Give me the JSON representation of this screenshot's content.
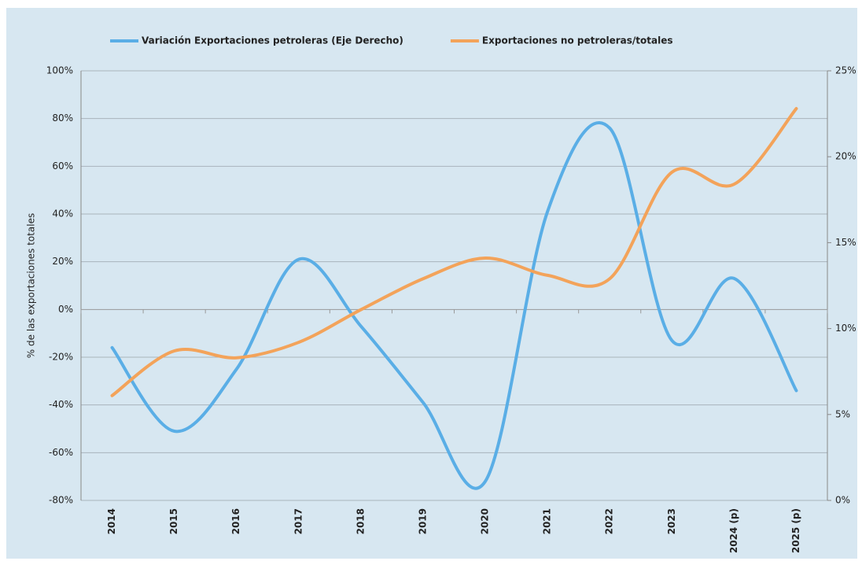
{
  "chart_data": {
    "type": "line",
    "y_label": "% de las exportaciones totales",
    "categories": [
      "2014",
      "2015",
      "2016",
      "2017",
      "2018",
      "2019",
      "2020",
      "2021",
      "2022",
      "2023",
      "2024 (p)",
      "2025 (p)"
    ],
    "series": [
      {
        "name": "Variación Exportaciones petroleras (Eje Derecho)",
        "color": "#5aaee6",
        "values": [
          -16,
          -51,
          -25,
          21,
          -7,
          -39,
          -72,
          41,
          76,
          -13,
          13,
          -34
        ]
      },
      {
        "name": "Exportaciones no petroleras/totales",
        "color": "#f3a35a",
        "axis": "y2",
        "values": [
          6.1,
          8.7,
          8.3,
          9.2,
          11.1,
          12.9,
          14.1,
          13.1,
          12.9,
          19.1,
          18.4,
          22.8
        ]
      }
    ],
    "ylim": [
      -80,
      100
    ],
    "yticks": [
      {
        "value": -80,
        "label": "-80%"
      },
      {
        "value": -60,
        "label": "-60%"
      },
      {
        "value": -40,
        "label": "-40%"
      },
      {
        "value": -20,
        "label": "-20%"
      },
      {
        "value": 0,
        "label": "0%"
      },
      {
        "value": 20,
        "label": "20%"
      },
      {
        "value": 40,
        "label": "40%"
      },
      {
        "value": 60,
        "label": "60%"
      },
      {
        "value": 80,
        "label": "80%"
      },
      {
        "value": 100,
        "label": "100%"
      }
    ],
    "y2lim": [
      0,
      25
    ],
    "y2ticks": [
      {
        "value": 0,
        "label": "0%"
      },
      {
        "value": 5,
        "label": "5%"
      },
      {
        "value": 10,
        "label": "10%"
      },
      {
        "value": 15,
        "label": "15%"
      },
      {
        "value": 20,
        "label": "20%"
      },
      {
        "value": 25,
        "label": "25%"
      }
    ],
    "grid": true,
    "legend": "top"
  }
}
